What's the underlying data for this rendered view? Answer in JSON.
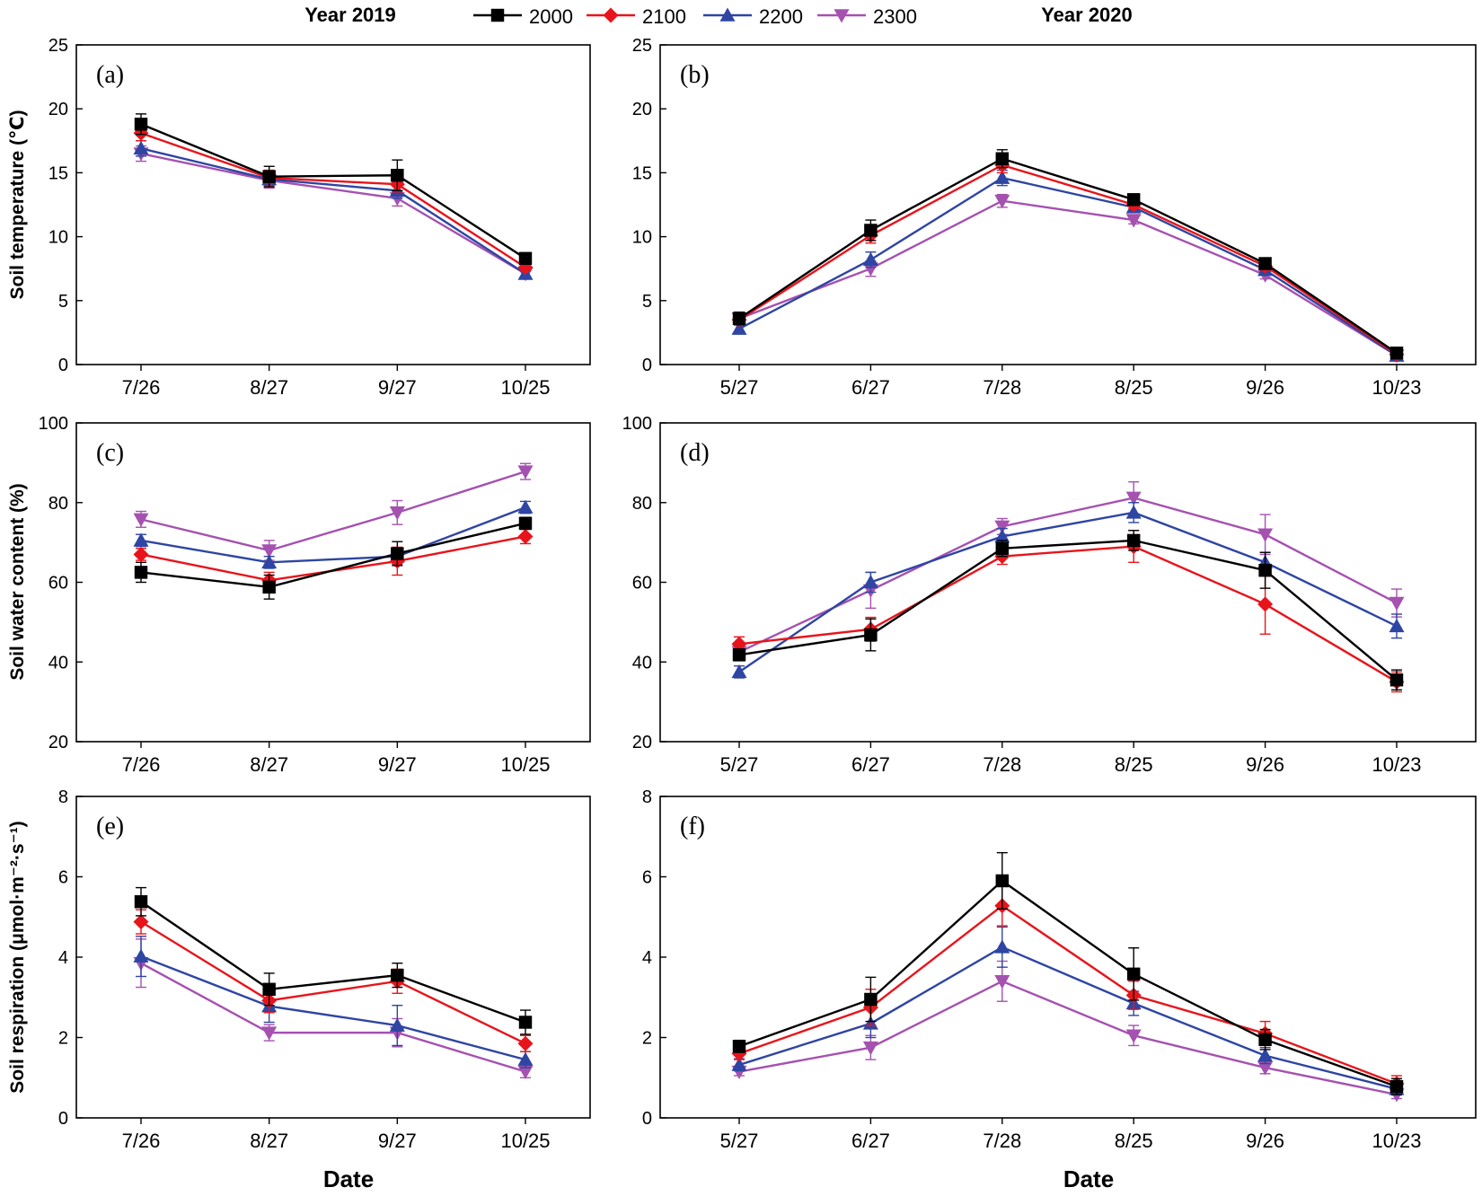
{
  "header": {
    "year_left": "Year 2019",
    "year_right": "Year 2020"
  },
  "legend": [
    {
      "name": "2000",
      "color": "#000000",
      "marker": "square"
    },
    {
      "name": "2100",
      "color": "#e8141b",
      "marker": "diamond"
    },
    {
      "name": "2200",
      "color": "#2e45a3",
      "marker": "triangle-up"
    },
    {
      "name": "2300",
      "color": "#a551b0",
      "marker": "triangle-down"
    }
  ],
  "x_title": "Date",
  "chart_data": [
    {
      "id": "a",
      "label": "(a)",
      "type": "line",
      "ylabel": "Soil temperature (℃)",
      "ylim": [
        0,
        25
      ],
      "yticks": [
        0,
        5,
        10,
        15,
        20,
        25
      ],
      "categories": [
        "7/26",
        "8/27",
        "9/27",
        "10/25"
      ],
      "series": [
        {
          "name": "2000",
          "values": [
            18.8,
            14.7,
            14.8,
            8.3
          ],
          "errors": [
            0.8,
            0.8,
            1.2,
            0.3
          ]
        },
        {
          "name": "2100",
          "values": [
            18.1,
            14.6,
            14.1,
            7.6
          ],
          "errors": [
            0.6,
            0.6,
            0.6,
            0.3
          ]
        },
        {
          "name": "2200",
          "values": [
            16.9,
            14.5,
            13.6,
            7.1
          ],
          "errors": [
            0.6,
            0.6,
            0.6,
            0.3
          ]
        },
        {
          "name": "2300",
          "values": [
            16.5,
            14.4,
            13.0,
            7.1
          ],
          "errors": [
            0.6,
            0.6,
            0.6,
            0.3
          ]
        }
      ]
    },
    {
      "id": "b",
      "label": "(b)",
      "type": "line",
      "ylabel": "",
      "ylim": [
        0,
        25
      ],
      "yticks": [
        0,
        5,
        10,
        15,
        20,
        25
      ],
      "categories": [
        "5/27",
        "6/27",
        "7/28",
        "8/25",
        "9/26",
        "10/23"
      ],
      "series": [
        {
          "name": "2000",
          "values": [
            3.6,
            10.5,
            16.1,
            12.9,
            7.9,
            0.9
          ],
          "errors": [
            0.5,
            0.8,
            0.7,
            0.3,
            0.3,
            0.2
          ]
        },
        {
          "name": "2100",
          "values": [
            3.5,
            10.1,
            15.6,
            12.5,
            7.7,
            0.8
          ],
          "errors": [
            0.4,
            0.6,
            0.6,
            0.3,
            0.3,
            0.2
          ]
        },
        {
          "name": "2200",
          "values": [
            2.8,
            8.2,
            14.6,
            12.3,
            7.4,
            0.7
          ],
          "errors": [
            0.4,
            0.6,
            0.6,
            0.3,
            0.3,
            0.2
          ]
        },
        {
          "name": "2300",
          "values": [
            3.6,
            7.5,
            12.8,
            11.3,
            7.0,
            0.7
          ],
          "errors": [
            0.4,
            0.6,
            0.5,
            0.3,
            0.3,
            0.2
          ]
        }
      ]
    },
    {
      "id": "c",
      "label": "(c)",
      "type": "line",
      "ylabel": "Soil water content (%)",
      "ylim": [
        20,
        100
      ],
      "yticks": [
        20,
        40,
        60,
        80,
        100
      ],
      "categories": [
        "7/26",
        "8/27",
        "9/27",
        "10/25"
      ],
      "series": [
        {
          "name": "2000",
          "values": [
            62.5,
            58.8,
            67.2,
            74.8
          ],
          "errors": [
            2.5,
            3.0,
            3.0,
            1.5
          ]
        },
        {
          "name": "2100",
          "values": [
            67.0,
            60.5,
            65.3,
            71.5
          ],
          "errors": [
            1.5,
            2.0,
            3.5,
            1.8
          ]
        },
        {
          "name": "2200",
          "values": [
            70.5,
            65.0,
            66.5,
            78.8
          ],
          "errors": [
            1.5,
            1.5,
            2.0,
            1.5
          ]
        },
        {
          "name": "2300",
          "values": [
            75.8,
            68.0,
            77.5,
            87.8
          ],
          "errors": [
            2.0,
            2.5,
            3.0,
            2.0
          ]
        }
      ]
    },
    {
      "id": "d",
      "label": "(d)",
      "type": "line",
      "ylabel": "",
      "ylim": [
        20,
        100
      ],
      "yticks": [
        20,
        40,
        60,
        80,
        100
      ],
      "categories": [
        "5/27",
        "6/27",
        "7/28",
        "8/25",
        "9/26",
        "10/23"
      ],
      "series": [
        {
          "name": "2000",
          "values": [
            41.8,
            46.8,
            68.5,
            70.5,
            63.0,
            35.5
          ],
          "errors": [
            1.5,
            4.0,
            2.0,
            2.5,
            4.5,
            2.5
          ]
        },
        {
          "name": "2100",
          "values": [
            44.5,
            48.2,
            66.5,
            69.0,
            54.5,
            35.0
          ],
          "errors": [
            1.8,
            3.0,
            2.0,
            4.0,
            7.5,
            2.5
          ]
        },
        {
          "name": "2200",
          "values": [
            37.5,
            60.0,
            71.5,
            77.5,
            65.0,
            49.0
          ],
          "errors": [
            1.5,
            2.5,
            2.0,
            2.5,
            2.5,
            3.0
          ]
        },
        {
          "name": "2300",
          "values": [
            42.5,
            58.0,
            74.0,
            81.2,
            72.0,
            54.8
          ],
          "errors": [
            2.0,
            4.5,
            2.0,
            4.0,
            5.0,
            3.5
          ]
        }
      ]
    },
    {
      "id": "e",
      "label": "(e)",
      "type": "line",
      "ylabel": "Soil respiration (μmol·m⁻²·s⁻¹)",
      "ylim": [
        0,
        8
      ],
      "yticks": [
        0,
        2,
        4,
        6,
        8
      ],
      "categories": [
        "7/26",
        "8/27",
        "9/27",
        "10/25"
      ],
      "series": [
        {
          "name": "2000",
          "values": [
            5.38,
            3.2,
            3.55,
            2.38
          ],
          "errors": [
            0.35,
            0.4,
            0.3,
            0.3
          ]
        },
        {
          "name": "2100",
          "values": [
            4.88,
            2.92,
            3.4,
            1.85
          ],
          "errors": [
            0.3,
            0.3,
            0.3,
            0.2
          ]
        },
        {
          "name": "2200",
          "values": [
            4.02,
            2.78,
            2.3,
            1.45
          ],
          "errors": [
            0.5,
            0.4,
            0.5,
            0.2
          ]
        },
        {
          "name": "2300",
          "values": [
            3.85,
            2.12,
            2.12,
            1.15
          ],
          "errors": [
            0.6,
            0.2,
            0.35,
            0.15
          ]
        }
      ]
    },
    {
      "id": "f",
      "label": "(f)",
      "type": "line",
      "ylabel": "",
      "ylim": [
        0,
        8
      ],
      "yticks": [
        0,
        2,
        4,
        6,
        8
      ],
      "categories": [
        "5/27",
        "6/27",
        "7/28",
        "8/25",
        "9/26",
        "10/23"
      ],
      "series": [
        {
          "name": "2000",
          "values": [
            1.78,
            2.95,
            5.9,
            3.58,
            1.95,
            0.78
          ],
          "errors": [
            0.15,
            0.55,
            0.7,
            0.65,
            0.25,
            0.2
          ]
        },
        {
          "name": "2100",
          "values": [
            1.6,
            2.75,
            5.28,
            3.05,
            2.1,
            0.85
          ],
          "errors": [
            0.15,
            0.45,
            0.5,
            0.35,
            0.3,
            0.2
          ]
        },
        {
          "name": "2200",
          "values": [
            1.32,
            2.35,
            4.25,
            2.85,
            1.55,
            0.72
          ],
          "errors": [
            0.15,
            0.35,
            0.5,
            0.3,
            0.2,
            0.15
          ]
        },
        {
          "name": "2300",
          "values": [
            1.15,
            1.75,
            3.4,
            2.05,
            1.25,
            0.58
          ],
          "errors": [
            0.1,
            0.3,
            0.5,
            0.25,
            0.15,
            0.1
          ]
        }
      ]
    }
  ]
}
